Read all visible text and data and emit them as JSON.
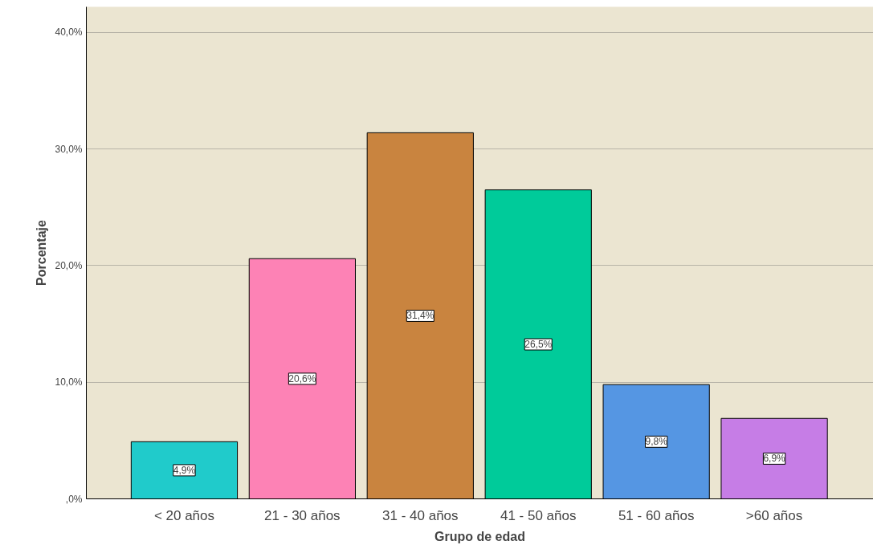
{
  "chart_data": {
    "type": "bar",
    "xlabel": "Grupo de edad",
    "ylabel": "Porcentaje",
    "categories": [
      "< 20 años",
      "21 - 30 años",
      "31 - 40 años",
      "41 - 50 años",
      "51 - 60 años",
      ">60 años"
    ],
    "values": [
      4.9,
      20.6,
      31.4,
      26.5,
      9.8,
      6.9
    ],
    "colors": [
      "#20cbcb",
      "#fd82b5",
      "#c9843f",
      "#00cb9a",
      "#5596e3",
      "#c67de6"
    ],
    "value_labels": [
      "4,9%",
      "20,6%",
      "31,4%",
      "26,5%",
      "9,8%",
      "6,9%"
    ],
    "ylim": [
      0,
      42.2
    ],
    "yticks": [
      {
        "value": 0,
        "label": ",0%"
      },
      {
        "value": 10,
        "label": "10,0%"
      },
      {
        "value": 20,
        "label": "20,0%"
      },
      {
        "value": 30,
        "label": "30,0%"
      },
      {
        "value": 40,
        "label": "40,0%"
      }
    ],
    "grid": "y"
  }
}
